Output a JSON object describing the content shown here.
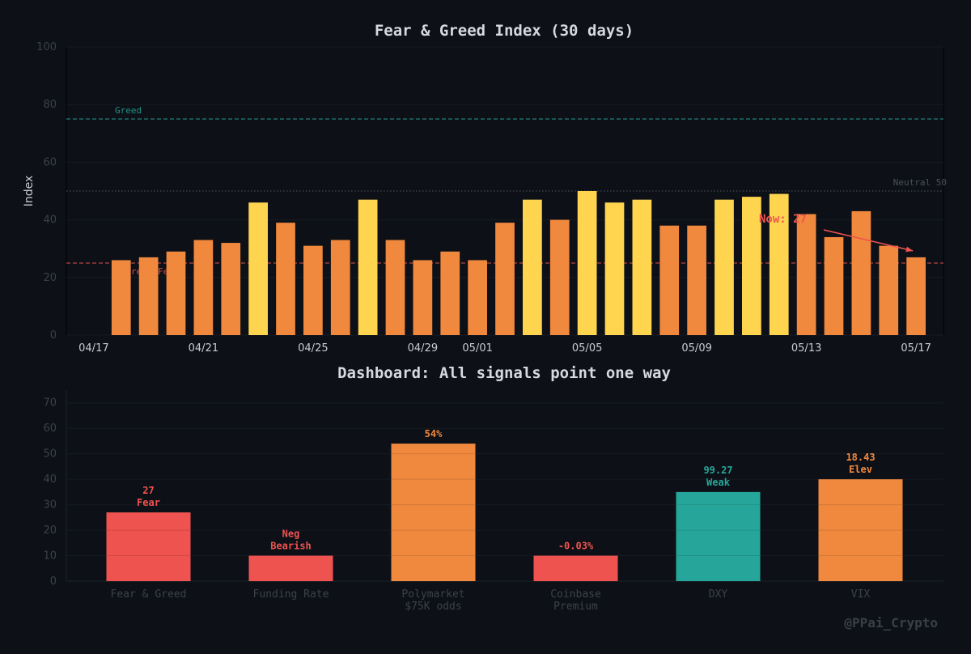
{
  "watermark": "@PPai_Crypto",
  "colors": {
    "background": "#0d1117",
    "fear": "#ef5350",
    "orange": "#f0883e",
    "yellow": "#ffd54f",
    "teal": "#26a69a",
    "greed_line": "#26a69a",
    "fear_line": "#ef5350",
    "neutral_line": "#555b63"
  },
  "chart_data": [
    {
      "type": "bar",
      "title": "Fear & Greed Index (30 days)",
      "xlabel": "",
      "ylabel": "Index",
      "ylim": [
        0,
        100
      ],
      "yticks": [
        0,
        20,
        40,
        60,
        80,
        100
      ],
      "xlim": [
        "2025-04-16",
        "2025-05-18"
      ],
      "xticks": [
        "04/17",
        "04/21",
        "04/25",
        "04/29",
        "05/01",
        "05/05",
        "05/09",
        "05/13",
        "05/17"
      ],
      "x": [
        "2025-04-18",
        "2025-04-19",
        "2025-04-20",
        "2025-04-21",
        "2025-04-22",
        "2025-04-23",
        "2025-04-24",
        "2025-04-25",
        "2025-04-26",
        "2025-04-27",
        "2025-04-28",
        "2025-04-29",
        "2025-04-30",
        "2025-05-01",
        "2025-05-02",
        "2025-05-03",
        "2025-05-04",
        "2025-05-05",
        "2025-05-06",
        "2025-05-07",
        "2025-05-08",
        "2025-05-09",
        "2025-05-10",
        "2025-05-11",
        "2025-05-12",
        "2025-05-13",
        "2025-05-14",
        "2025-05-15",
        "2025-05-16",
        "2025-05-17"
      ],
      "values": [
        26,
        27,
        29,
        33,
        32,
        46,
        39,
        31,
        33,
        47,
        33,
        26,
        29,
        26,
        39,
        47,
        40,
        50,
        46,
        47,
        38,
        38,
        47,
        48,
        49,
        42,
        34,
        43,
        31,
        27
      ],
      "reference_lines": [
        {
          "value": 75,
          "label": "Greed",
          "color": "#26a69a",
          "style": "dashed"
        },
        {
          "value": 50,
          "label": "Neutral 50",
          "color": "#555b63",
          "style": "dotted"
        },
        {
          "value": 25,
          "label": "Extreme Fear",
          "color": "#ef5350",
          "style": "dashed"
        }
      ],
      "annotation": {
        "text": "Now: 27",
        "target_x": "2025-05-17",
        "target_y": 27,
        "color": "#ef5350"
      },
      "grid": true
    },
    {
      "type": "bar",
      "title": "Dashboard: All signals point one way",
      "ylim": [
        0,
        75
      ],
      "yticks": [
        0,
        10,
        20,
        30,
        40,
        50,
        60,
        70
      ],
      "categories": [
        [
          "Fear & Greed"
        ],
        [
          "Funding Rate"
        ],
        [
          "Polymarket",
          "$75K odds"
        ],
        [
          "Coinbase",
          "Premium"
        ],
        [
          "DXY"
        ],
        [
          "VIX"
        ]
      ],
      "values": [
        27,
        10,
        54,
        10,
        35,
        40
      ],
      "value_labels": [
        [
          "27",
          "Fear"
        ],
        [
          "Neg",
          "Bearish"
        ],
        [
          "54%"
        ],
        [
          "-0.03%"
        ],
        [
          "99.27",
          "Weak"
        ],
        [
          "18.43",
          "Elev"
        ]
      ],
      "colors": [
        "#ef5350",
        "#ef5350",
        "#f0883e",
        "#ef5350",
        "#26a69a",
        "#f0883e"
      ],
      "grid": true
    }
  ]
}
